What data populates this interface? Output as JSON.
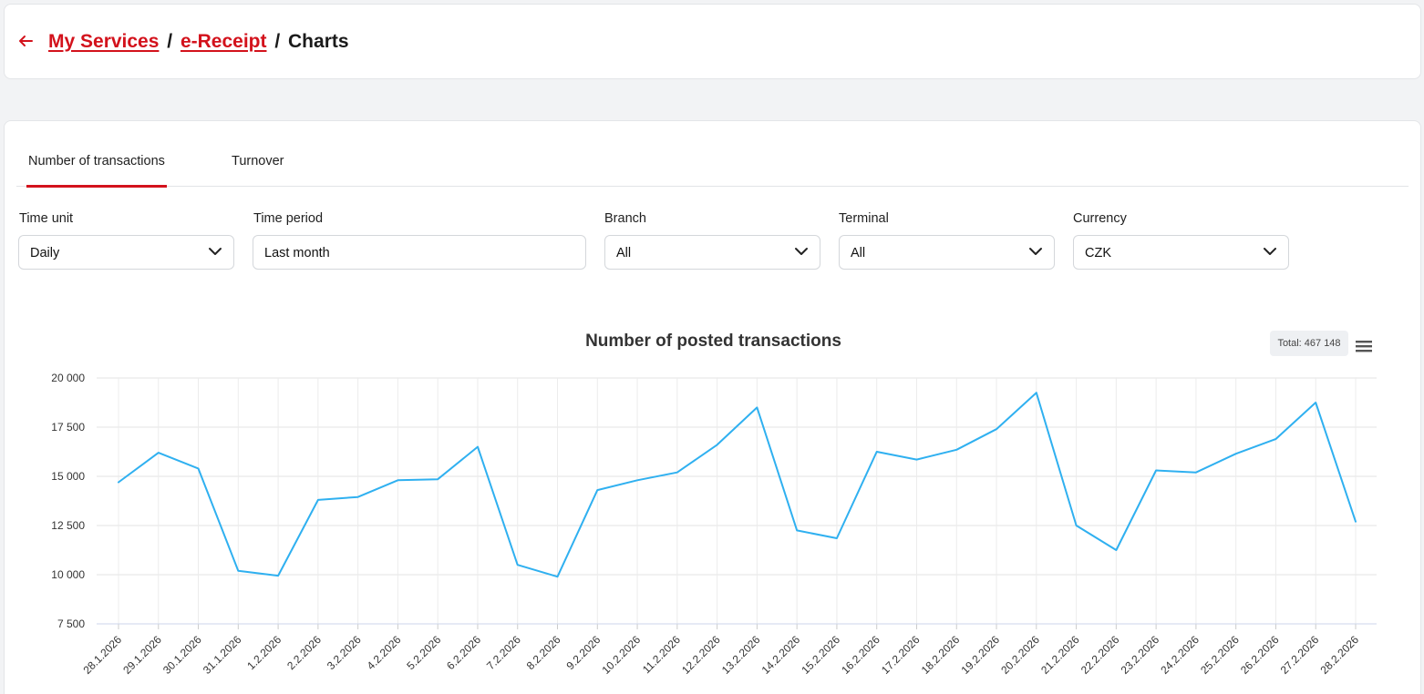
{
  "breadcrumb": {
    "back_icon": "arrow-left-icon",
    "my_services": "My Services",
    "separator": "/",
    "ereceipt": "e-Receipt",
    "current": "Charts"
  },
  "tabs": [
    {
      "label": "Number of transactions",
      "active": true
    },
    {
      "label": "Turnover",
      "active": false
    }
  ],
  "filters": {
    "time_unit": {
      "label": "Time unit",
      "value": "Daily"
    },
    "time_period": {
      "label": "Time period",
      "value": "Last month"
    },
    "branch": {
      "label": "Branch",
      "value": "All"
    },
    "terminal": {
      "label": "Terminal",
      "value": "All"
    },
    "currency": {
      "label": "Currency",
      "value": "CZK"
    }
  },
  "colors": {
    "accent": "#d3121c",
    "line": "#2fb0f0"
  },
  "chart_total": "Total: 467 148",
  "chart_data": {
    "type": "line",
    "title": "Number of posted transactions",
    "xlabel": "",
    "ylabel": "",
    "ylim": [
      7500,
      20000
    ],
    "yticks": [
      "20 000",
      "17 500",
      "15 000",
      "12 500",
      "10 000",
      "7 500"
    ],
    "ytick_values": [
      20000,
      17500,
      15000,
      12500,
      10000,
      7500
    ],
    "grid": true,
    "categories": [
      "28.1.2026",
      "29.1.2026",
      "30.1.2026",
      "31.1.2026",
      "1.2.2026",
      "2.2.2026",
      "3.2.2026",
      "4.2.2026",
      "5.2.2026",
      "6.2.2026",
      "7.2.2026",
      "8.2.2026",
      "9.2.2026",
      "10.2.2026",
      "11.2.2026",
      "12.2.2026",
      "13.2.2026",
      "14.2.2026",
      "15.2.2026",
      "16.2.2026",
      "17.2.2026",
      "18.2.2026",
      "19.2.2026",
      "20.2.2026",
      "21.2.2026",
      "22.2.2026",
      "23.2.2026",
      "24.2.2026",
      "25.2.2026",
      "26.2.2026",
      "27.2.2026",
      "28.2.2026"
    ],
    "values": [
      14700,
      16200,
      15400,
      10200,
      9950,
      13800,
      13950,
      14800,
      14850,
      16500,
      10500,
      9900,
      14300,
      14800,
      15200,
      16600,
      18500,
      12250,
      11850,
      16250,
      15850,
      16350,
      17400,
      19250,
      12500,
      11250,
      15300,
      15200,
      16150,
      16900,
      18750,
      12700
    ]
  }
}
